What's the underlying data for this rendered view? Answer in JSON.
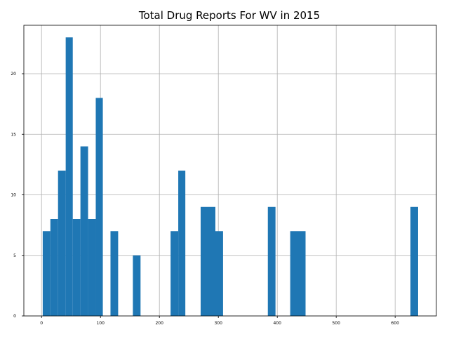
{
  "chart_data": {
    "type": "bar",
    "title": "Total Drug Reports For WV in 2015",
    "xlabel": "",
    "ylabel": "",
    "xlim": [
      -30,
      670
    ],
    "ylim": [
      0,
      24
    ],
    "grid": true,
    "bar_color": "#1f77b4",
    "x_ticks": [
      0,
      100,
      200,
      300,
      400,
      500,
      600
    ],
    "y_ticks": [
      0,
      5,
      10,
      15,
      20
    ],
    "bins": [
      {
        "x0": 2,
        "x1": 15,
        "value": 7
      },
      {
        "x0": 15,
        "x1": 28,
        "value": 8
      },
      {
        "x0": 28,
        "x1": 41,
        "value": 12
      },
      {
        "x0": 41,
        "x1": 53,
        "value": 23
      },
      {
        "x0": 53,
        "x1": 66,
        "value": 8
      },
      {
        "x0": 66,
        "x1": 79,
        "value": 14
      },
      {
        "x0": 79,
        "x1": 92,
        "value": 8
      },
      {
        "x0": 92,
        "x1": 104,
        "value": 18
      },
      {
        "x0": 117,
        "x1": 130,
        "value": 7
      },
      {
        "x0": 155,
        "x1": 168,
        "value": 5
      },
      {
        "x0": 219,
        "x1": 232,
        "value": 7
      },
      {
        "x0": 232,
        "x1": 244,
        "value": 12
      },
      {
        "x0": 270,
        "x1": 295,
        "value": 9
      },
      {
        "x0": 295,
        "x1": 308,
        "value": 7
      },
      {
        "x0": 384,
        "x1": 397,
        "value": 9
      },
      {
        "x0": 422,
        "x1": 448,
        "value": 7
      },
      {
        "x0": 626,
        "x1": 639,
        "value": 9
      }
    ]
  }
}
